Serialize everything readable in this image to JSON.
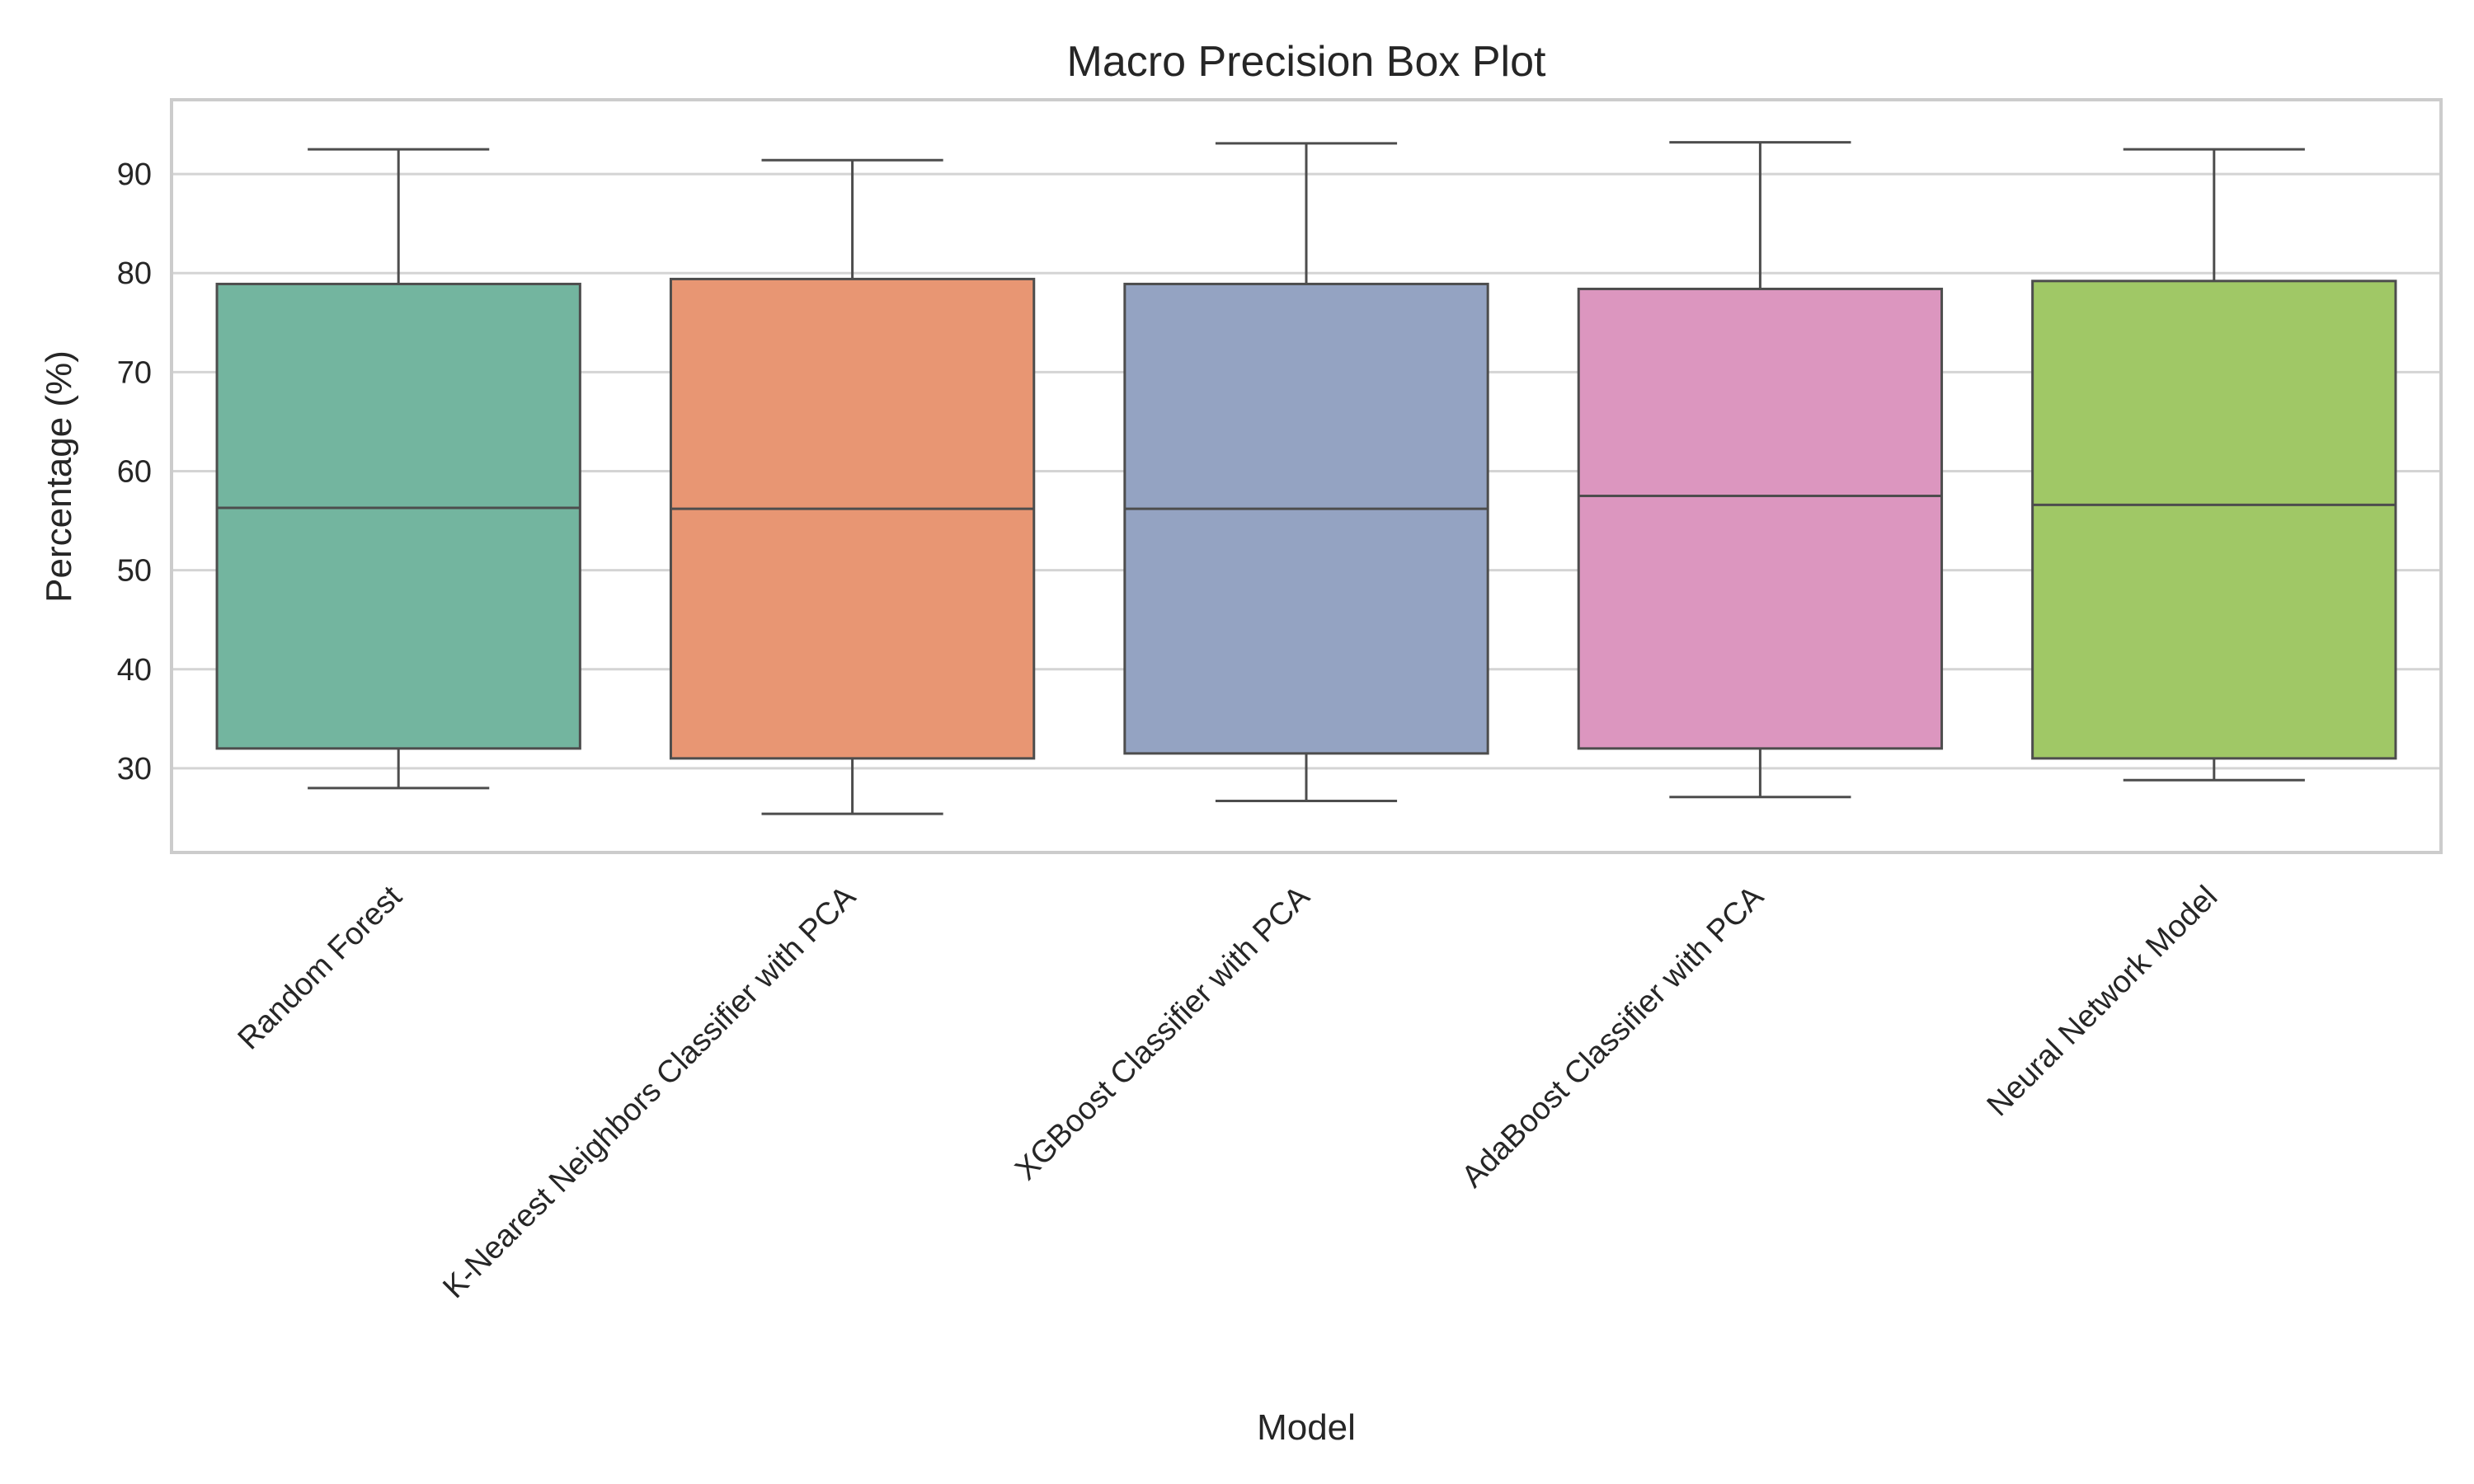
{
  "chart_data": {
    "type": "box",
    "title": "Macro Precision Box Plot",
    "xlabel": "Model",
    "ylabel": "Percentage (%)",
    "ylim": [
      21.5,
      97.5
    ],
    "yticks": [
      30,
      40,
      50,
      60,
      70,
      80,
      90
    ],
    "grid": true,
    "categories": [
      "Random Forest",
      "K-Nearest Neighbors Classifier with PCA",
      "XGBoost Classifier with PCA",
      "AdaBoost Classifier with PCA",
      "Neural Network Model"
    ],
    "colors": [
      "#73b59f",
      "#e89673",
      "#94a3c2",
      "#dc96bf",
      "#a0c866"
    ],
    "boxes": [
      {
        "whisker_low": 28.0,
        "q1": 32.0,
        "median": 56.3,
        "q3": 78.9,
        "whisker_high": 92.5
      },
      {
        "whisker_low": 25.4,
        "q1": 31.0,
        "median": 56.2,
        "q3": 79.4,
        "whisker_high": 91.4
      },
      {
        "whisker_low": 26.7,
        "q1": 31.5,
        "median": 56.2,
        "q3": 78.9,
        "whisker_high": 93.1
      },
      {
        "whisker_low": 27.1,
        "q1": 32.0,
        "median": 57.5,
        "q3": 78.4,
        "whisker_high": 93.2
      },
      {
        "whisker_low": 28.8,
        "q1": 31.0,
        "median": 56.6,
        "q3": 79.2,
        "whisker_high": 92.5
      }
    ]
  }
}
